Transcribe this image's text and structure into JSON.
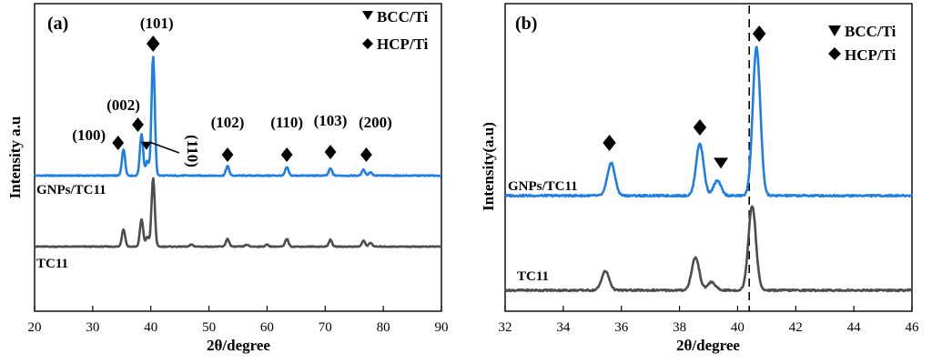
{
  "chart_data": [
    {
      "type": "line",
      "panel": "(a)",
      "xlabel": "2θ/degree",
      "ylabel": "Intensity a.u",
      "xlim": [
        20,
        90
      ],
      "xticks": [
        "20",
        "30",
        "40",
        "50",
        "60",
        "70",
        "80",
        "90"
      ],
      "legend": [
        {
          "marker": "triangle-down",
          "label": "BCC/Ti"
        },
        {
          "marker": "diamond",
          "label": "HCP/Ti"
        }
      ],
      "series": [
        {
          "name": "GNPs/TC11",
          "color": "#1f7ee6",
          "baseline": 0.0,
          "peaks": [
            {
              "x": 35.3,
              "h": 0.22
            },
            {
              "x": 38.4,
              "h": 0.35
            },
            {
              "x": 39.4,
              "h": 0.12
            },
            {
              "x": 40.4,
              "h": 1.0
            },
            {
              "x": 53.2,
              "h": 0.08
            },
            {
              "x": 63.4,
              "h": 0.07
            },
            {
              "x": 70.9,
              "h": 0.06
            },
            {
              "x": 76.6,
              "h": 0.05
            },
            {
              "x": 77.8,
              "h": 0.03
            }
          ]
        },
        {
          "name": "TC11",
          "color": "#4d4d4d",
          "baseline": 0.0,
          "peaks": [
            {
              "x": 35.3,
              "h": 0.18
            },
            {
              "x": 38.4,
              "h": 0.28
            },
            {
              "x": 39.4,
              "h": 0.1
            },
            {
              "x": 40.4,
              "h": 0.7
            },
            {
              "x": 47.0,
              "h": 0.02
            },
            {
              "x": 53.2,
              "h": 0.08
            },
            {
              "x": 56.5,
              "h": 0.02
            },
            {
              "x": 60.0,
              "h": 0.02
            },
            {
              "x": 63.4,
              "h": 0.08
            },
            {
              "x": 70.9,
              "h": 0.07
            },
            {
              "x": 76.6,
              "h": 0.06
            },
            {
              "x": 77.8,
              "h": 0.04
            }
          ]
        }
      ],
      "annotations": [
        {
          "text": "(100)",
          "x": 35.3,
          "marker": "diamond"
        },
        {
          "text": "(002)",
          "x": 38.4,
          "marker": "diamond"
        },
        {
          "text": "(101)",
          "x": 40.4,
          "marker": "diamond"
        },
        {
          "text": "(110)",
          "x": 39.4,
          "marker": "triangle-down",
          "rotated": true
        },
        {
          "text": "(102)",
          "x": 53.2,
          "marker": "diamond"
        },
        {
          "text": "(110)",
          "x": 63.4,
          "marker": "diamond"
        },
        {
          "text": "(103)",
          "x": 70.9,
          "marker": "diamond"
        },
        {
          "text": "(200)",
          "x": 76.6,
          "marker": "diamond"
        }
      ]
    },
    {
      "type": "line",
      "panel": "(b)",
      "xlabel": "2θ/degree",
      "ylabel": "Intensity(a.u)",
      "xlim": [
        32,
        46
      ],
      "xticks": [
        "32",
        "34",
        "36",
        "38",
        "40",
        "42",
        "44",
        "46"
      ],
      "reference_line_x": 40.4,
      "legend": [
        {
          "marker": "triangle-down",
          "label": "BCC/Ti"
        },
        {
          "marker": "diamond",
          "label": "HCP/Ti"
        }
      ],
      "series": [
        {
          "name": "GNPs/TC11",
          "color": "#1f7ee6",
          "peaks": [
            {
              "x": 35.65,
              "h": 0.22
            },
            {
              "x": 38.7,
              "h": 0.35
            },
            {
              "x": 39.3,
              "h": 0.1
            },
            {
              "x": 40.65,
              "h": 1.0
            }
          ]
        },
        {
          "name": "TC11",
          "color": "#4d4d4d",
          "peaks": [
            {
              "x": 35.45,
              "h": 0.14
            },
            {
              "x": 38.55,
              "h": 0.24
            },
            {
              "x": 39.1,
              "h": 0.06
            },
            {
              "x": 40.5,
              "h": 0.62
            }
          ]
        }
      ],
      "annotations": [
        {
          "x": 35.65,
          "marker": "diamond"
        },
        {
          "x": 38.7,
          "marker": "diamond"
        },
        {
          "x": 39.3,
          "marker": "triangle-down"
        },
        {
          "x": 40.65,
          "marker": "diamond"
        }
      ]
    }
  ]
}
